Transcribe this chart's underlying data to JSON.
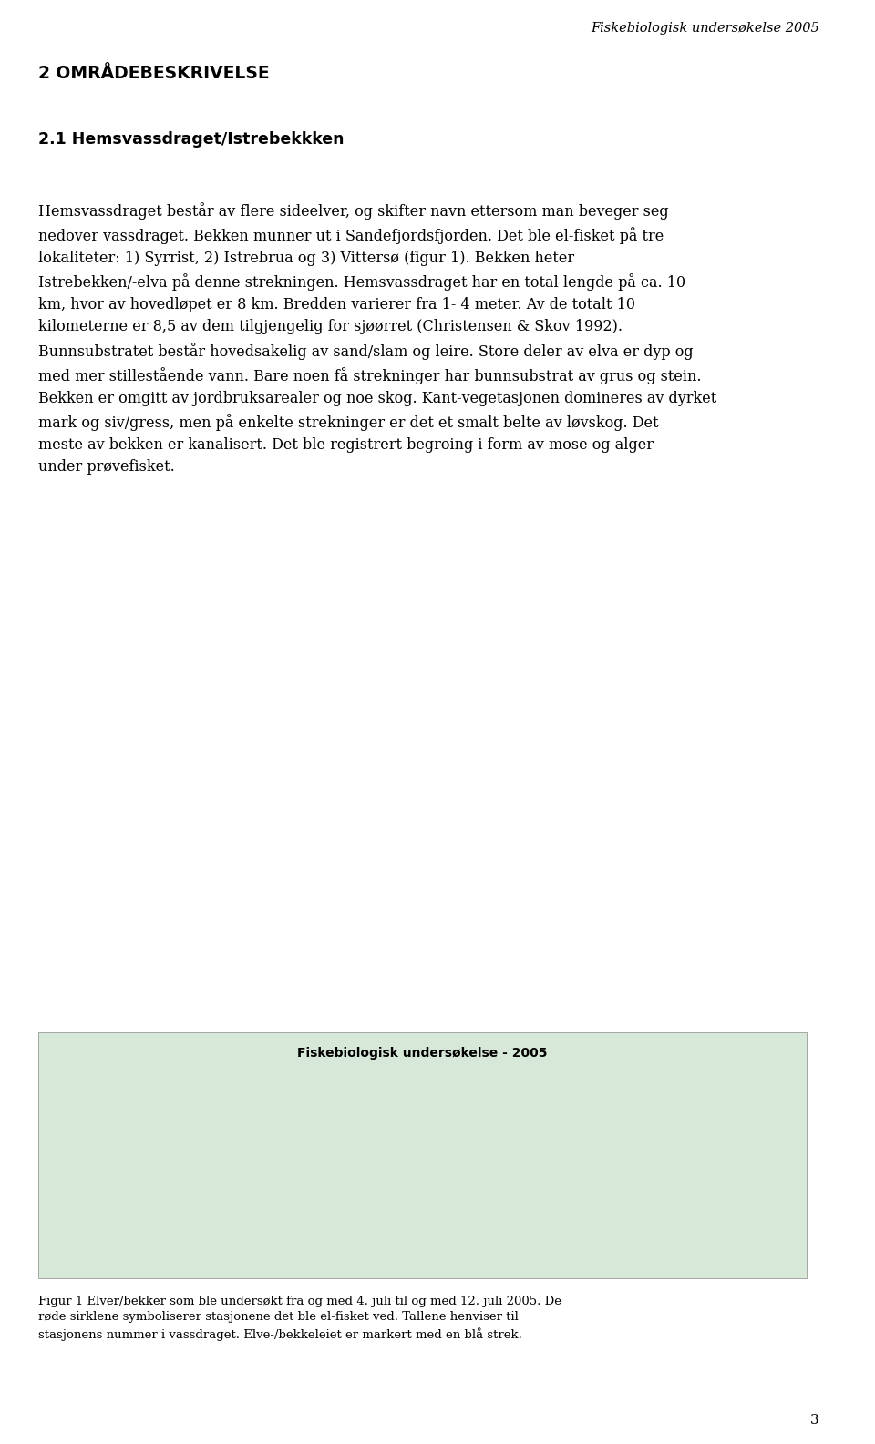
{
  "header_right": "Fiskebiologisk undersøkelse 2005",
  "page_number": "3",
  "section_title": "2 OMRÅDEBESKRIVELSE",
  "subsection_title": "2.1 Hemsvassdraget/Istrebekkken",
  "body_paragraphs": [
    "Hemsvassdraget består av flere sideelver, og skifter navn ettersom man beveger seg nedover vassdraget. Bekken munner ut i Sandefjordsfjorden. Det ble el-fisket på tre lokaliteter: 1) Syrrist, 2) Istrebrua og 3) Vittersø (figur 1). Bekken heter Istrebekken/-elva på denne strekningen. Hemsvassdraget har en total lengde på ca. 10 km, hvor av hovedløpet er 8 km. Bredden varierer fra 1- 4 meter. Av de totalt 10 kilometerne er 8,5 av dem tilgjengelig for sjøørret (Christensen & Skov 1992). Bunnsubstratet består hovedsakelig av sand/slam og leire. Store deler av elva er dyp og med mer stillestående vann. Bare noen få strekninger har bunnsubstrat av grus og stein. Bekken er omgitt av jordbruksarealer og noe skog. Kant-vegetasjonen domineres av dyrket mark og siv/gress, men på enkelte strekninger er det et smalt belte av løvskog. Det meste av bekken er kanalisert. Det ble registrert begroing i form av mose og alger under prøvefisket."
  ],
  "figure_label": "Fiskebiologisk undersøkelse - 2005",
  "figure_caption": "Figur 1 Elver/bekker som ble undersøkt fra og med 4. juli til og med 12. juli 2005. De røde sirklene symboliserer stasjonene det ble el-fisket ved. Tallene henviser til stasjonens nummer i vassdraget. Elve-/bekkeleiet er markert med en blå strek.",
  "bg_color": "#ffffff",
  "text_color": "#000000",
  "header_color": "#555555",
  "body_fontsize": 11.5,
  "section_fontsize": 13.5,
  "subsection_fontsize": 12.5,
  "header_fontsize": 10.5
}
